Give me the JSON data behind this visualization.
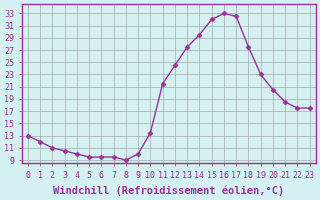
{
  "x": [
    0,
    1,
    2,
    3,
    4,
    5,
    6,
    7,
    8,
    9,
    10,
    11,
    12,
    13,
    14,
    15,
    16,
    17,
    18,
    19,
    20,
    21,
    22,
    23
  ],
  "y": [
    13,
    12,
    11,
    10.5,
    10,
    9.5,
    9.5,
    9.5,
    9,
    10,
    13.5,
    21.5,
    24.5,
    27.5,
    29.5,
    32,
    33,
    32.5,
    27.5,
    23,
    20.5,
    18.5,
    17.5,
    17.5
  ],
  "line_color": "#993399",
  "marker": "D",
  "marker_size": 2.5,
  "bg_color": "#d4f0f0",
  "grid_color": "#aaaaaa",
  "xlabel": "Windchill (Refroidissement éolien,°C)",
  "xlabel_fontsize": 7.5,
  "ylabel_ticks": [
    9,
    11,
    13,
    15,
    17,
    19,
    21,
    23,
    25,
    27,
    29,
    31,
    33
  ],
  "xlim": [
    -0.5,
    23.5
  ],
  "ylim": [
    8.5,
    34.5
  ],
  "xtick_labels": [
    "0",
    "1",
    "2",
    "3",
    "4",
    "5",
    "6",
    "7",
    "8",
    "9",
    "10",
    "11",
    "12",
    "13",
    "14",
    "15",
    "16",
    "17",
    "18",
    "19",
    "20",
    "21",
    "22",
    "23"
  ],
  "tick_color": "#993399",
  "tick_fontsize": 6,
  "spine_color": "#993399"
}
